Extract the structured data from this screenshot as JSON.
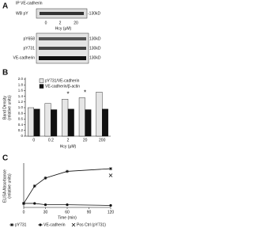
{
  "blot": {
    "label": "A",
    "ip": "IP VE-cadherin",
    "wb": "WB pY",
    "top_size": "-130kD",
    "top_lanes": [
      "0",
      "2",
      "20"
    ],
    "xlabel": "Hcy (μM)",
    "rows": [
      {
        "name": "pY658",
        "size": "130kD"
      },
      {
        "name": "pY731",
        "size": "130kD"
      },
      {
        "name": "VE-cadherin",
        "size": "130kD"
      }
    ]
  },
  "chart_data": [
    {
      "type": "bar",
      "panel_label": "B",
      "ylabel": [
        "Band Density",
        "(relative units)"
      ],
      "xlabel": "Hcy (μM)",
      "categories": [
        "0",
        "0.2",
        "2",
        "20",
        "200"
      ],
      "series": [
        {
          "name": "pY731/VE-cadherin",
          "color": "#e6e6e6",
          "values": [
            1.0,
            1.15,
            1.3,
            1.35,
            1.55
          ]
        },
        {
          "name": "VE-cadherin/β-actin",
          "color": "#111111",
          "values": [
            0.95,
            0.93,
            0.95,
            0.93,
            0.95
          ]
        }
      ],
      "significance": [
        null,
        null,
        "*",
        "*",
        null
      ],
      "ylim": [
        0,
        2
      ],
      "yticks": [
        0,
        {
          "value": 0.2,
          "label": "0.2"
        },
        {
          "value": 0.4,
          "label": "0.4"
        },
        {
          "value": 0.6,
          "label": "0.6"
        },
        {
          "value": 0.8,
          "label": "0.8"
        },
        {
          "value": 1.0,
          "label": "1.0"
        },
        {
          "value": 1.2,
          "label": "1.2"
        },
        {
          "value": 1.4,
          "label": "1.4"
        },
        {
          "value": 1.6,
          "label": "1.6"
        },
        {
          "value": 1.8,
          "label": "1.8"
        },
        {
          "value": 2.0,
          "label": "2.0"
        }
      ]
    },
    {
      "type": "line",
      "panel_label": "C",
      "ylabel": [
        "ELISA Absorbance",
        "(relative units)"
      ],
      "xlabel": "Time (min)",
      "xlim": [
        0,
        120
      ],
      "xticks": [
        0,
        30,
        60,
        90,
        120
      ],
      "ylim": [
        0,
        3.2
      ],
      "series": [
        {
          "name": "pY731",
          "color": "#111111",
          "marker": "star",
          "line": true,
          "x": [
            0,
            15,
            30,
            60,
            120
          ],
          "values": [
            0.3,
            1.6,
            2.2,
            2.7,
            2.9
          ]
        },
        {
          "name": "VE-cadherin",
          "color": "#111111",
          "marker": "circle",
          "line": true,
          "x": [
            0,
            15,
            30,
            60,
            120
          ],
          "values": [
            0.3,
            0.3,
            0.2,
            0.2,
            0.15
          ]
        },
        {
          "name": "Pos Ctrl (pY731)",
          "color": "#111111",
          "marker": "x",
          "line": false,
          "x": [
            120
          ],
          "values": [
            2.4
          ]
        }
      ]
    }
  ]
}
